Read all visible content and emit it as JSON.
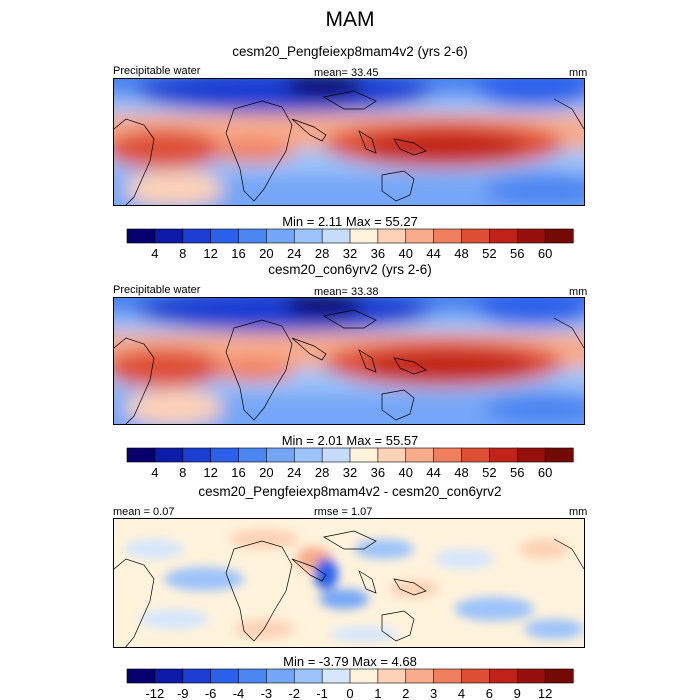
{
  "title": "MAM",
  "chart_data": [
    {
      "type": "heatmap",
      "title": "cesm20_Pengfeiexp8mam4v2 (yrs 2-6)",
      "left_label": "Precipitable water",
      "center_label": "mean=  33.45",
      "right_label": "mm",
      "minmax": "Min =   2.11 Max =  55.27",
      "min": 2.11,
      "max": 55.27,
      "mean": 33.45,
      "colorbar_labels": [
        "4",
        "8",
        "12",
        "16",
        "20",
        "24",
        "28",
        "32",
        "36",
        "40",
        "44",
        "48",
        "52",
        "56",
        "60"
      ],
      "colors": [
        "#08006e",
        "#0e1aa8",
        "#1c3ed1",
        "#2a60ea",
        "#4c86f1",
        "#74a6f7",
        "#9cc3fa",
        "#c6dcfb",
        "#fff3dc",
        "#fdd2b6",
        "#f8ac8b",
        "#f07f5f",
        "#de4f34",
        "#c02418",
        "#96100b",
        "#730a05"
      ]
    },
    {
      "type": "heatmap",
      "title": "cesm20_con6yrv2 (yrs 2-6)",
      "left_label": "Precipitable water",
      "center_label": "mean=  33.38",
      "right_label": "mm",
      "minmax": "Min =   2.01 Max =  55.57",
      "min": 2.01,
      "max": 55.57,
      "mean": 33.38,
      "colorbar_labels": [
        "4",
        "8",
        "12",
        "16",
        "20",
        "24",
        "28",
        "32",
        "36",
        "40",
        "44",
        "48",
        "52",
        "56",
        "60"
      ],
      "colors": [
        "#08006e",
        "#0e1aa8",
        "#1c3ed1",
        "#2a60ea",
        "#4c86f1",
        "#74a6f7",
        "#9cc3fa",
        "#c6dcfb",
        "#fff3dc",
        "#fdd2b6",
        "#f8ac8b",
        "#f07f5f",
        "#de4f34",
        "#c02418",
        "#96100b",
        "#730a05"
      ]
    },
    {
      "type": "heatmap",
      "title": "cesm20_Pengfeiexp8mam4v2 - cesm20_con6yrv2",
      "left_label": "mean =   0.07",
      "center_label": "rmse =   1.07",
      "right_label": "mm",
      "minmax": "Min =  -3.79 Max =   4.68",
      "min": -3.79,
      "max": 4.68,
      "mean": 0.07,
      "rmse": 1.07,
      "colorbar_labels": [
        "-12",
        "-9",
        "-6",
        "-4",
        "-3",
        "-2",
        "-1",
        "0",
        "1",
        "2",
        "3",
        "4",
        "6",
        "9",
        "12"
      ],
      "colors": [
        "#08006e",
        "#0e1aa8",
        "#1c3ed1",
        "#2a60ea",
        "#4c86f1",
        "#74a6f7",
        "#9cc3fa",
        "#d6e6fc",
        "#fff3dc",
        "#fdd2b6",
        "#f8ac8b",
        "#f07f5f",
        "#de4f34",
        "#c02418",
        "#96100b",
        "#730a05"
      ]
    }
  ]
}
